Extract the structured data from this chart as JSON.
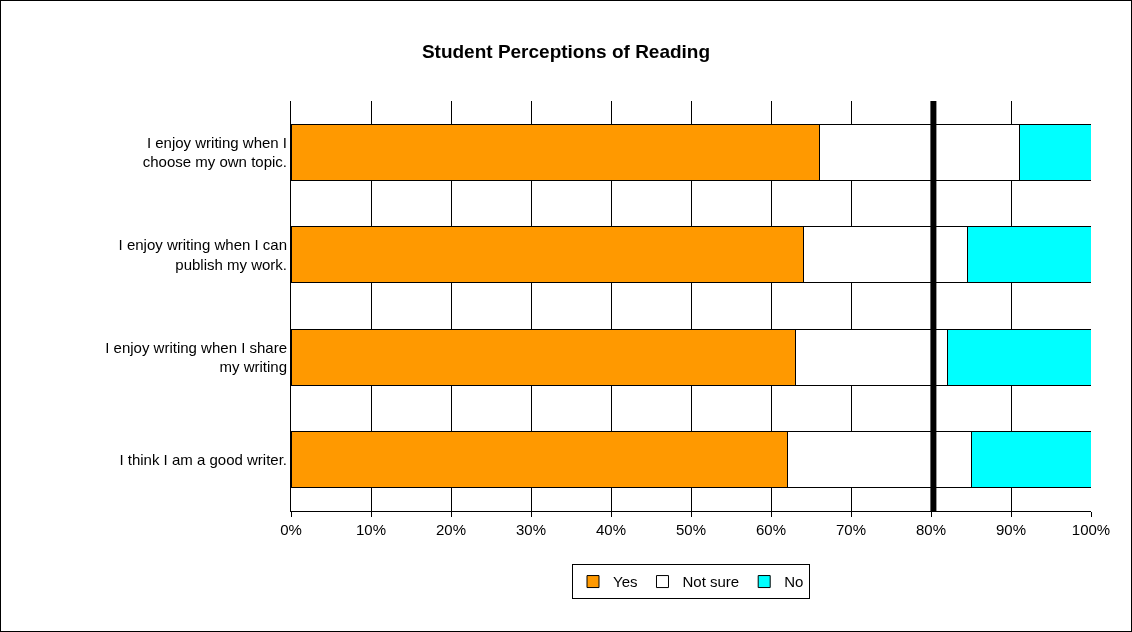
{
  "chart_data": {
    "type": "bar",
    "title": "Student Perceptions of Reading",
    "orientation": "horizontal",
    "stacked": true,
    "categories": [
      "I enjoy writing when I choose my own topic.",
      "I enjoy writing when I can publish my work.",
      "I enjoy writing when I share my writing",
      "I think I am a good writer."
    ],
    "series": [
      {
        "name": "Yes",
        "color": "#ff9900",
        "values": [
          66,
          64,
          63,
          62
        ]
      },
      {
        "name": "Not sure",
        "color": "#ffffff",
        "values": [
          25,
          20.5,
          19,
          23
        ]
      },
      {
        "name": "No",
        "color": "#00ffff",
        "values": [
          9,
          15.5,
          18,
          15
        ]
      }
    ],
    "xlim": [
      0,
      100
    ],
    "xticks": [
      {
        "value": 0,
        "label": "0%"
      },
      {
        "value": 10,
        "label": "10%"
      },
      {
        "value": 20,
        "label": "20%"
      },
      {
        "value": 30,
        "label": "30%"
      },
      {
        "value": 40,
        "label": "40%"
      },
      {
        "value": 50,
        "label": "50%"
      },
      {
        "value": 60,
        "label": "60%"
      },
      {
        "value": 70,
        "label": "70%"
      },
      {
        "value": 80,
        "label": "80%"
      },
      {
        "value": 90,
        "label": "90%"
      },
      {
        "value": 100,
        "label": "100%"
      }
    ],
    "ref_lines": [
      {
        "axis": "x",
        "value": 80.3,
        "color": "#000000"
      }
    ],
    "grid": "x",
    "legend": "bottom"
  }
}
